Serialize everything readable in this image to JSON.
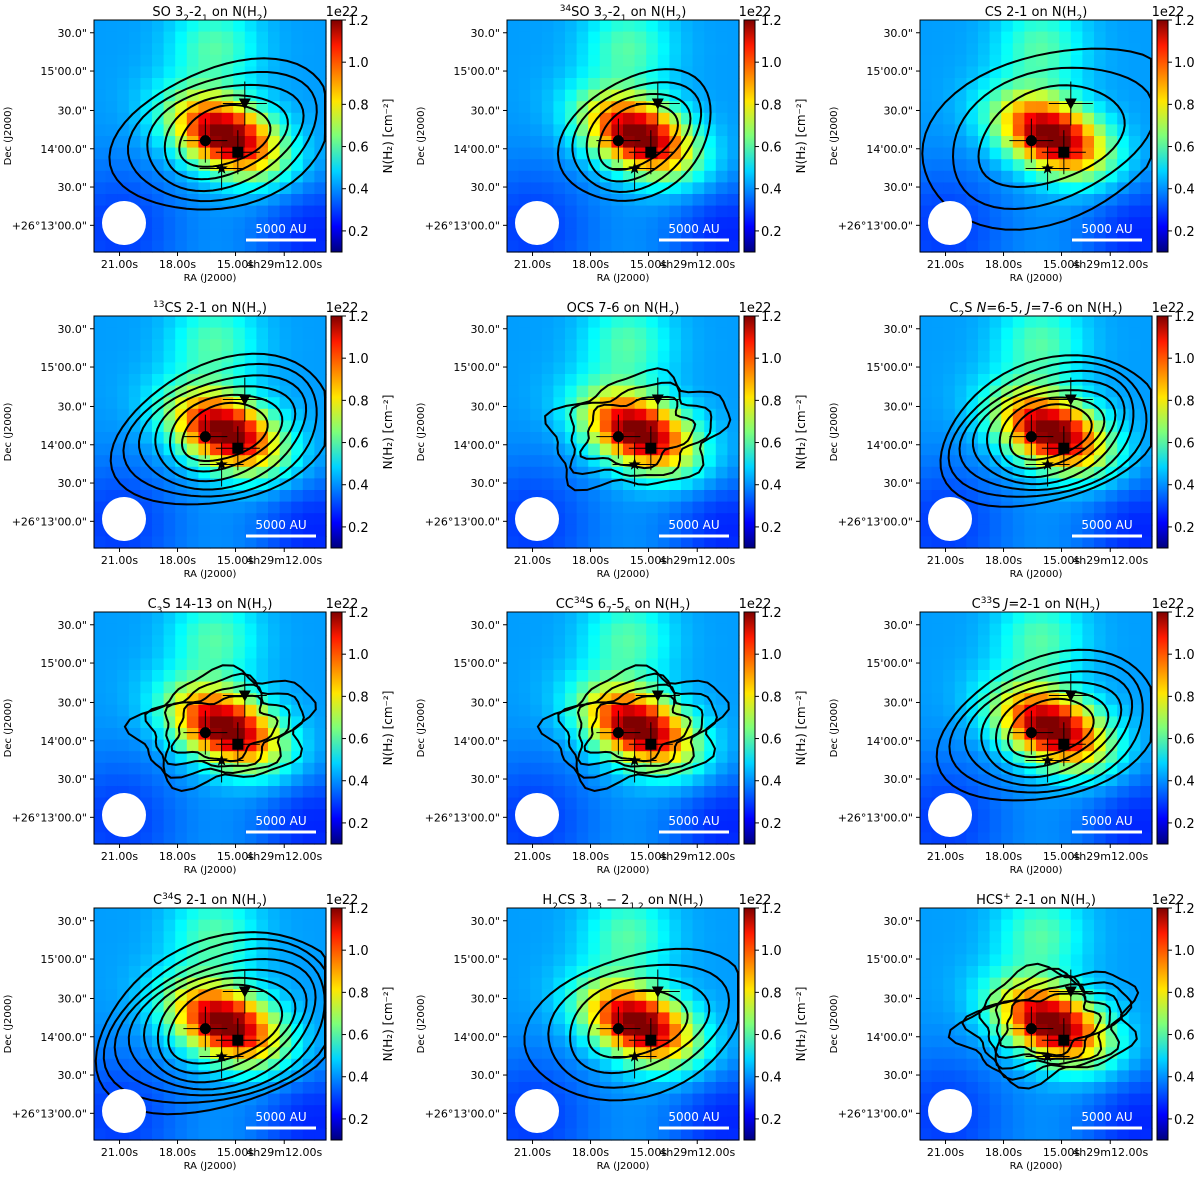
{
  "figure": {
    "panel_count": 12,
    "layout": "4 rows x 3 columns"
  },
  "chart_data": [
    {
      "type": "heatmap",
      "title": "SO 3₂-2₁ on N(H₂)",
      "title_parts": [
        [
          "SO 3",
          ""
        ],
        [
          "2",
          "sub"
        ],
        [
          "-2",
          ""
        ],
        [
          "1",
          "sub"
        ],
        [
          " on N(H",
          ""
        ],
        [
          "2",
          "sub"
        ],
        [
          ")",
          ""
        ]
      ],
      "contour_style": "elongated",
      "contour_levels": 5,
      "xlabel": "RA (J2000)",
      "ylabel": "Dec (J2000)",
      "x_ticks": [
        "21.00s",
        "18.00s",
        "15.00s",
        "4h29m12.00s"
      ],
      "y_ticks": [
        "30.0\"",
        "15'00.0\"",
        "30.0\"",
        "14'00.0\"",
        "30.0\"",
        "+26°13'00.0\""
      ],
      "colorbar_label": "N(H₂) [cm⁻²]",
      "colorbar_ticks": [
        0.2,
        0.4,
        0.6,
        0.8,
        1.0,
        1.2
      ],
      "colorbar_range": [
        0.1,
        1.2
      ],
      "colorbar_multiplier": "1e22",
      "scalebar_label": "5000 AU",
      "markers": [
        "circle",
        "square",
        "triangle-down",
        "star"
      ]
    },
    {
      "type": "heatmap",
      "title": "³⁴SO 3₂-2₁ on N(H₂)",
      "title_parts": [
        [
          "34",
          "sup"
        ],
        [
          "SO 3",
          ""
        ],
        [
          "2",
          "sub"
        ],
        [
          "-2",
          ""
        ],
        [
          "1",
          "sub"
        ],
        [
          " on N(H",
          ""
        ],
        [
          "2",
          "sub"
        ],
        [
          ")",
          ""
        ]
      ],
      "contour_style": "compact",
      "contour_levels": 4,
      "xlabel": "RA (J2000)",
      "ylabel": "Dec (J2000)",
      "x_ticks": [
        "21.00s",
        "18.00s",
        "15.00s",
        "4h29m12.00s"
      ],
      "y_ticks": [
        "30.0\"",
        "15'00.0\"",
        "30.0\"",
        "14'00.0\"",
        "30.0\"",
        "+26°13'00.0\""
      ],
      "colorbar_label": "N(H₂) [cm⁻²]",
      "colorbar_ticks": [
        0.2,
        0.4,
        0.6,
        0.8,
        1.0,
        1.2
      ],
      "colorbar_range": [
        0.1,
        1.2
      ],
      "colorbar_multiplier": "1e22",
      "scalebar_label": "5000 AU",
      "markers": [
        "circle",
        "square",
        "triangle-down",
        "star"
      ]
    },
    {
      "type": "heatmap",
      "title": "CS 2-1 on N(H₂)",
      "title_parts": [
        [
          "CS 2-1 on N(H",
          ""
        ],
        [
          "2",
          "sub"
        ],
        [
          ")",
          ""
        ]
      ],
      "contour_style": "wide",
      "contour_levels": 3,
      "xlabel": "RA (J2000)",
      "ylabel": "Dec (J2000)",
      "x_ticks": [
        "21.00s",
        "18.00s",
        "15.00s",
        "4h29m12.00s"
      ],
      "y_ticks": [
        "30.0\"",
        "15'00.0\"",
        "30.0\"",
        "14'00.0\"",
        "30.0\"",
        "+26°13'00.0\""
      ],
      "colorbar_label": "N(H₂) [cm⁻²]",
      "colorbar_ticks": [
        0.2,
        0.4,
        0.6,
        0.8,
        1.0,
        1.2
      ],
      "colorbar_range": [
        0.1,
        1.2
      ],
      "colorbar_multiplier": "1e22",
      "scalebar_label": "5000 AU",
      "markers": [
        "circle",
        "square",
        "triangle-down",
        "star"
      ]
    },
    {
      "type": "heatmap",
      "title": "¹³CS 2-1 on N(H₂)",
      "title_parts": [
        [
          "13",
          "sup"
        ],
        [
          "CS 2-1 on N(H",
          ""
        ],
        [
          "2",
          "sub"
        ],
        [
          ")",
          ""
        ]
      ],
      "contour_style": "elongated",
      "contour_levels": 6,
      "xlabel": "RA (J2000)",
      "ylabel": "Dec (J2000)",
      "x_ticks": [
        "21.00s",
        "18.00s",
        "15.00s",
        "4h29m12.00s"
      ],
      "y_ticks": [
        "30.0\"",
        "15'00.0\"",
        "30.0\"",
        "14'00.0\"",
        "30.0\"",
        "+26°13'00.0\""
      ],
      "colorbar_label": "N(H₂) [cm⁻²]",
      "colorbar_ticks": [
        0.2,
        0.4,
        0.6,
        0.8,
        1.0,
        1.2
      ],
      "colorbar_range": [
        0.1,
        1.2
      ],
      "colorbar_multiplier": "1e22",
      "scalebar_label": "5000 AU",
      "markers": [
        "circle",
        "square",
        "triangle-down",
        "star"
      ]
    },
    {
      "type": "heatmap",
      "title": "OCS 7-6 on N(H₂)",
      "title_parts": [
        [
          "OCS 7-6 on N(H",
          ""
        ],
        [
          "2",
          "sub"
        ],
        [
          ")",
          ""
        ]
      ],
      "contour_style": "clumpy",
      "contour_levels": 3,
      "xlabel": "RA (J2000)",
      "ylabel": "Dec (J2000)",
      "x_ticks": [
        "21.00s",
        "18.00s",
        "15.00s",
        "4h29m12.00s"
      ],
      "y_ticks": [
        "30.0\"",
        "15'00.0\"",
        "30.0\"",
        "14'00.0\"",
        "30.0\"",
        "+26°13'00.0\""
      ],
      "colorbar_label": "N(H₂) [cm⁻²]",
      "colorbar_ticks": [
        0.2,
        0.4,
        0.6,
        0.8,
        1.0,
        1.2
      ],
      "colorbar_range": [
        0.1,
        1.2
      ],
      "colorbar_multiplier": "1e22",
      "scalebar_label": "5000 AU",
      "markers": [
        "circle",
        "square",
        "triangle-down",
        "star"
      ]
    },
    {
      "type": "heatmap",
      "title": "C₂S N=6-5, J=7-6 on N(H₂)",
      "title_parts": [
        [
          "C",
          ""
        ],
        [
          "2",
          "sub"
        ],
        [
          "S ",
          ""
        ],
        [
          "N",
          "it"
        ],
        [
          "=6-5, ",
          ""
        ],
        [
          "J",
          "it"
        ],
        [
          "=7-6 on N(H",
          ""
        ],
        [
          "2",
          "sub"
        ],
        [
          ")",
          ""
        ]
      ],
      "contour_style": "elongated",
      "contour_levels": 7,
      "xlabel": "RA (J2000)",
      "ylabel": "Dec (J2000)",
      "x_ticks": [
        "21.00s",
        "18.00s",
        "15.00s",
        "4h29m12.00s"
      ],
      "y_ticks": [
        "30.0\"",
        "15'00.0\"",
        "30.0\"",
        "14'00.0\"",
        "30.0\"",
        "+26°13'00.0\""
      ],
      "colorbar_label": "N(H₂) [cm⁻²]",
      "colorbar_ticks": [
        0.2,
        0.4,
        0.6,
        0.8,
        1.0,
        1.2
      ],
      "colorbar_range": [
        0.1,
        1.2
      ],
      "colorbar_multiplier": "1e22",
      "scalebar_label": "5000 AU",
      "markers": [
        "circle",
        "square",
        "triangle-down",
        "star"
      ]
    },
    {
      "type": "heatmap",
      "title": "C₃S 14-13 on N(H₂)",
      "title_parts": [
        [
          "C",
          ""
        ],
        [
          "3",
          "sub"
        ],
        [
          "S 14-13 on N(H",
          ""
        ],
        [
          "2",
          "sub"
        ],
        [
          ")",
          ""
        ]
      ],
      "contour_style": "clumpy",
      "contour_levels": 4,
      "xlabel": "RA (J2000)",
      "ylabel": "Dec (J2000)",
      "x_ticks": [
        "21.00s",
        "18.00s",
        "15.00s",
        "4h29m12.00s"
      ],
      "y_ticks": [
        "30.0\"",
        "15'00.0\"",
        "30.0\"",
        "14'00.0\"",
        "30.0\"",
        "+26°13'00.0\""
      ],
      "colorbar_label": "N(H₂) [cm⁻²]",
      "colorbar_ticks": [
        0.2,
        0.4,
        0.6,
        0.8,
        1.0,
        1.2
      ],
      "colorbar_range": [
        0.1,
        1.2
      ],
      "colorbar_multiplier": "1e22",
      "scalebar_label": "5000 AU",
      "markers": [
        "circle",
        "square",
        "triangle-down",
        "star"
      ]
    },
    {
      "type": "heatmap",
      "title": "CC³⁴S 6₇-5₆ on N(H₂)",
      "title_parts": [
        [
          "CC",
          ""
        ],
        [
          "34",
          "sup"
        ],
        [
          "S 6",
          ""
        ],
        [
          "7",
          "sub"
        ],
        [
          "-5",
          ""
        ],
        [
          "6",
          "sub"
        ],
        [
          " on N(H",
          ""
        ],
        [
          "2",
          "sub"
        ],
        [
          ")",
          ""
        ]
      ],
      "contour_style": "clumpy",
      "contour_levels": 4,
      "xlabel": "RA (J2000)",
      "ylabel": "Dec (J2000)",
      "x_ticks": [
        "21.00s",
        "18.00s",
        "15.00s",
        "4h29m12.00s"
      ],
      "y_ticks": [
        "30.0\"",
        "15'00.0\"",
        "30.0\"",
        "14'00.0\"",
        "30.0\"",
        "+26°13'00.0\""
      ],
      "colorbar_label": "N(H₂) [cm⁻²]",
      "colorbar_ticks": [
        0.2,
        0.4,
        0.6,
        0.8,
        1.0,
        1.2
      ],
      "colorbar_range": [
        0.1,
        1.2
      ],
      "colorbar_multiplier": "1e22",
      "scalebar_label": "5000 AU",
      "markers": [
        "circle",
        "square",
        "triangle-down",
        "star"
      ]
    },
    {
      "type": "heatmap",
      "title": "C³³S J=2-1 on N(H₂)",
      "title_parts": [
        [
          "C",
          ""
        ],
        [
          "33",
          "sup"
        ],
        [
          "S ",
          ""
        ],
        [
          "J",
          "it"
        ],
        [
          "=2-1 on N(H",
          ""
        ],
        [
          "2",
          "sub"
        ],
        [
          ")",
          ""
        ]
      ],
      "contour_style": "elongated",
      "contour_levels": 6,
      "xlabel": "RA (J2000)",
      "ylabel": "Dec (J2000)",
      "x_ticks": [
        "21.00s",
        "18.00s",
        "15.00s",
        "4h29m12.00s"
      ],
      "y_ticks": [
        "30.0\"",
        "15'00.0\"",
        "30.0\"",
        "14'00.0\"",
        "30.0\"",
        "+26°13'00.0\""
      ],
      "colorbar_label": "N(H₂) [cm⁻²]",
      "colorbar_ticks": [
        0.2,
        0.4,
        0.6,
        0.8,
        1.0,
        1.2
      ],
      "colorbar_range": [
        0.1,
        1.2
      ],
      "colorbar_multiplier": "1e22",
      "scalebar_label": "5000 AU",
      "markers": [
        "circle",
        "square",
        "triangle-down",
        "star"
      ]
    },
    {
      "type": "heatmap",
      "title": "C³⁴S 2-1 on N(H₂)",
      "title_parts": [
        [
          "C",
          ""
        ],
        [
          "34",
          "sup"
        ],
        [
          "S 2-1 on N(H",
          ""
        ],
        [
          "2",
          "sub"
        ],
        [
          ")",
          ""
        ]
      ],
      "contour_style": "wide",
      "contour_levels": 7,
      "xlabel": "RA (J2000)",
      "ylabel": "Dec (J2000)",
      "x_ticks": [
        "21.00s",
        "18.00s",
        "15.00s",
        "4h29m12.00s"
      ],
      "y_ticks": [
        "30.0\"",
        "15'00.0\"",
        "30.0\"",
        "14'00.0\"",
        "30.0\"",
        "+26°13'00.0\""
      ],
      "colorbar_label": "N(H₂) [cm⁻²]",
      "colorbar_ticks": [
        0.2,
        0.4,
        0.6,
        0.8,
        1.0,
        1.2
      ],
      "colorbar_range": [
        0.1,
        1.2
      ],
      "colorbar_multiplier": "1e22",
      "scalebar_label": "5000 AU",
      "markers": [
        "circle",
        "square",
        "triangle-down",
        "star"
      ]
    },
    {
      "type": "heatmap",
      "title": "H₂CS 3₁,₃ − 2₁,₂ on N(H₂)",
      "title_parts": [
        [
          "H",
          ""
        ],
        [
          "2",
          "sub"
        ],
        [
          "CS 3",
          ""
        ],
        [
          "1,3",
          "sub"
        ],
        [
          " − 2",
          ""
        ],
        [
          "1,2",
          "sub"
        ],
        [
          " on N(H",
          ""
        ],
        [
          "2",
          "sub"
        ],
        [
          ")",
          ""
        ]
      ],
      "contour_style": "elongated",
      "contour_levels": 4,
      "xlabel": "RA (J2000)",
      "ylabel": "Dec (J2000)",
      "x_ticks": [
        "21.00s",
        "18.00s",
        "15.00s",
        "4h29m12.00s"
      ],
      "y_ticks": [
        "30.0\"",
        "15'00.0\"",
        "30.0\"",
        "14'00.0\"",
        "30.0\"",
        "+26°13'00.0\""
      ],
      "colorbar_label": "N(H₂) [cm⁻²]",
      "colorbar_ticks": [
        0.2,
        0.4,
        0.6,
        0.8,
        1.0,
        1.2
      ],
      "colorbar_range": [
        0.1,
        1.2
      ],
      "colorbar_multiplier": "1e22",
      "scalebar_label": "5000 AU",
      "markers": [
        "circle",
        "square",
        "triangle-down",
        "star"
      ]
    },
    {
      "type": "heatmap",
      "title": "HCS⁺ 2-1 on N(H₂)",
      "title_parts": [
        [
          "HCS",
          ""
        ],
        [
          "+",
          "sup"
        ],
        [
          " 2-1 on N(H",
          ""
        ],
        [
          "2",
          "sub"
        ],
        [
          ")",
          ""
        ]
      ],
      "contour_style": "clumpy",
      "contour_levels": 5,
      "xlabel": "RA (J2000)",
      "ylabel": "Dec (J2000)",
      "x_ticks": [
        "21.00s",
        "18.00s",
        "15.00s",
        "4h29m12.00s"
      ],
      "y_ticks": [
        "30.0\"",
        "15'00.0\"",
        "30.0\"",
        "14'00.0\"",
        "30.0\"",
        "+26°13'00.0\""
      ],
      "colorbar_label": "N(H₂) [cm⁻²]",
      "colorbar_ticks": [
        0.2,
        0.4,
        0.6,
        0.8,
        1.0,
        1.2
      ],
      "colorbar_range": [
        0.1,
        1.2
      ],
      "colorbar_multiplier": "1e22",
      "scalebar_label": "5000 AU",
      "markers": [
        "circle",
        "square",
        "triangle-down",
        "star"
      ]
    }
  ]
}
